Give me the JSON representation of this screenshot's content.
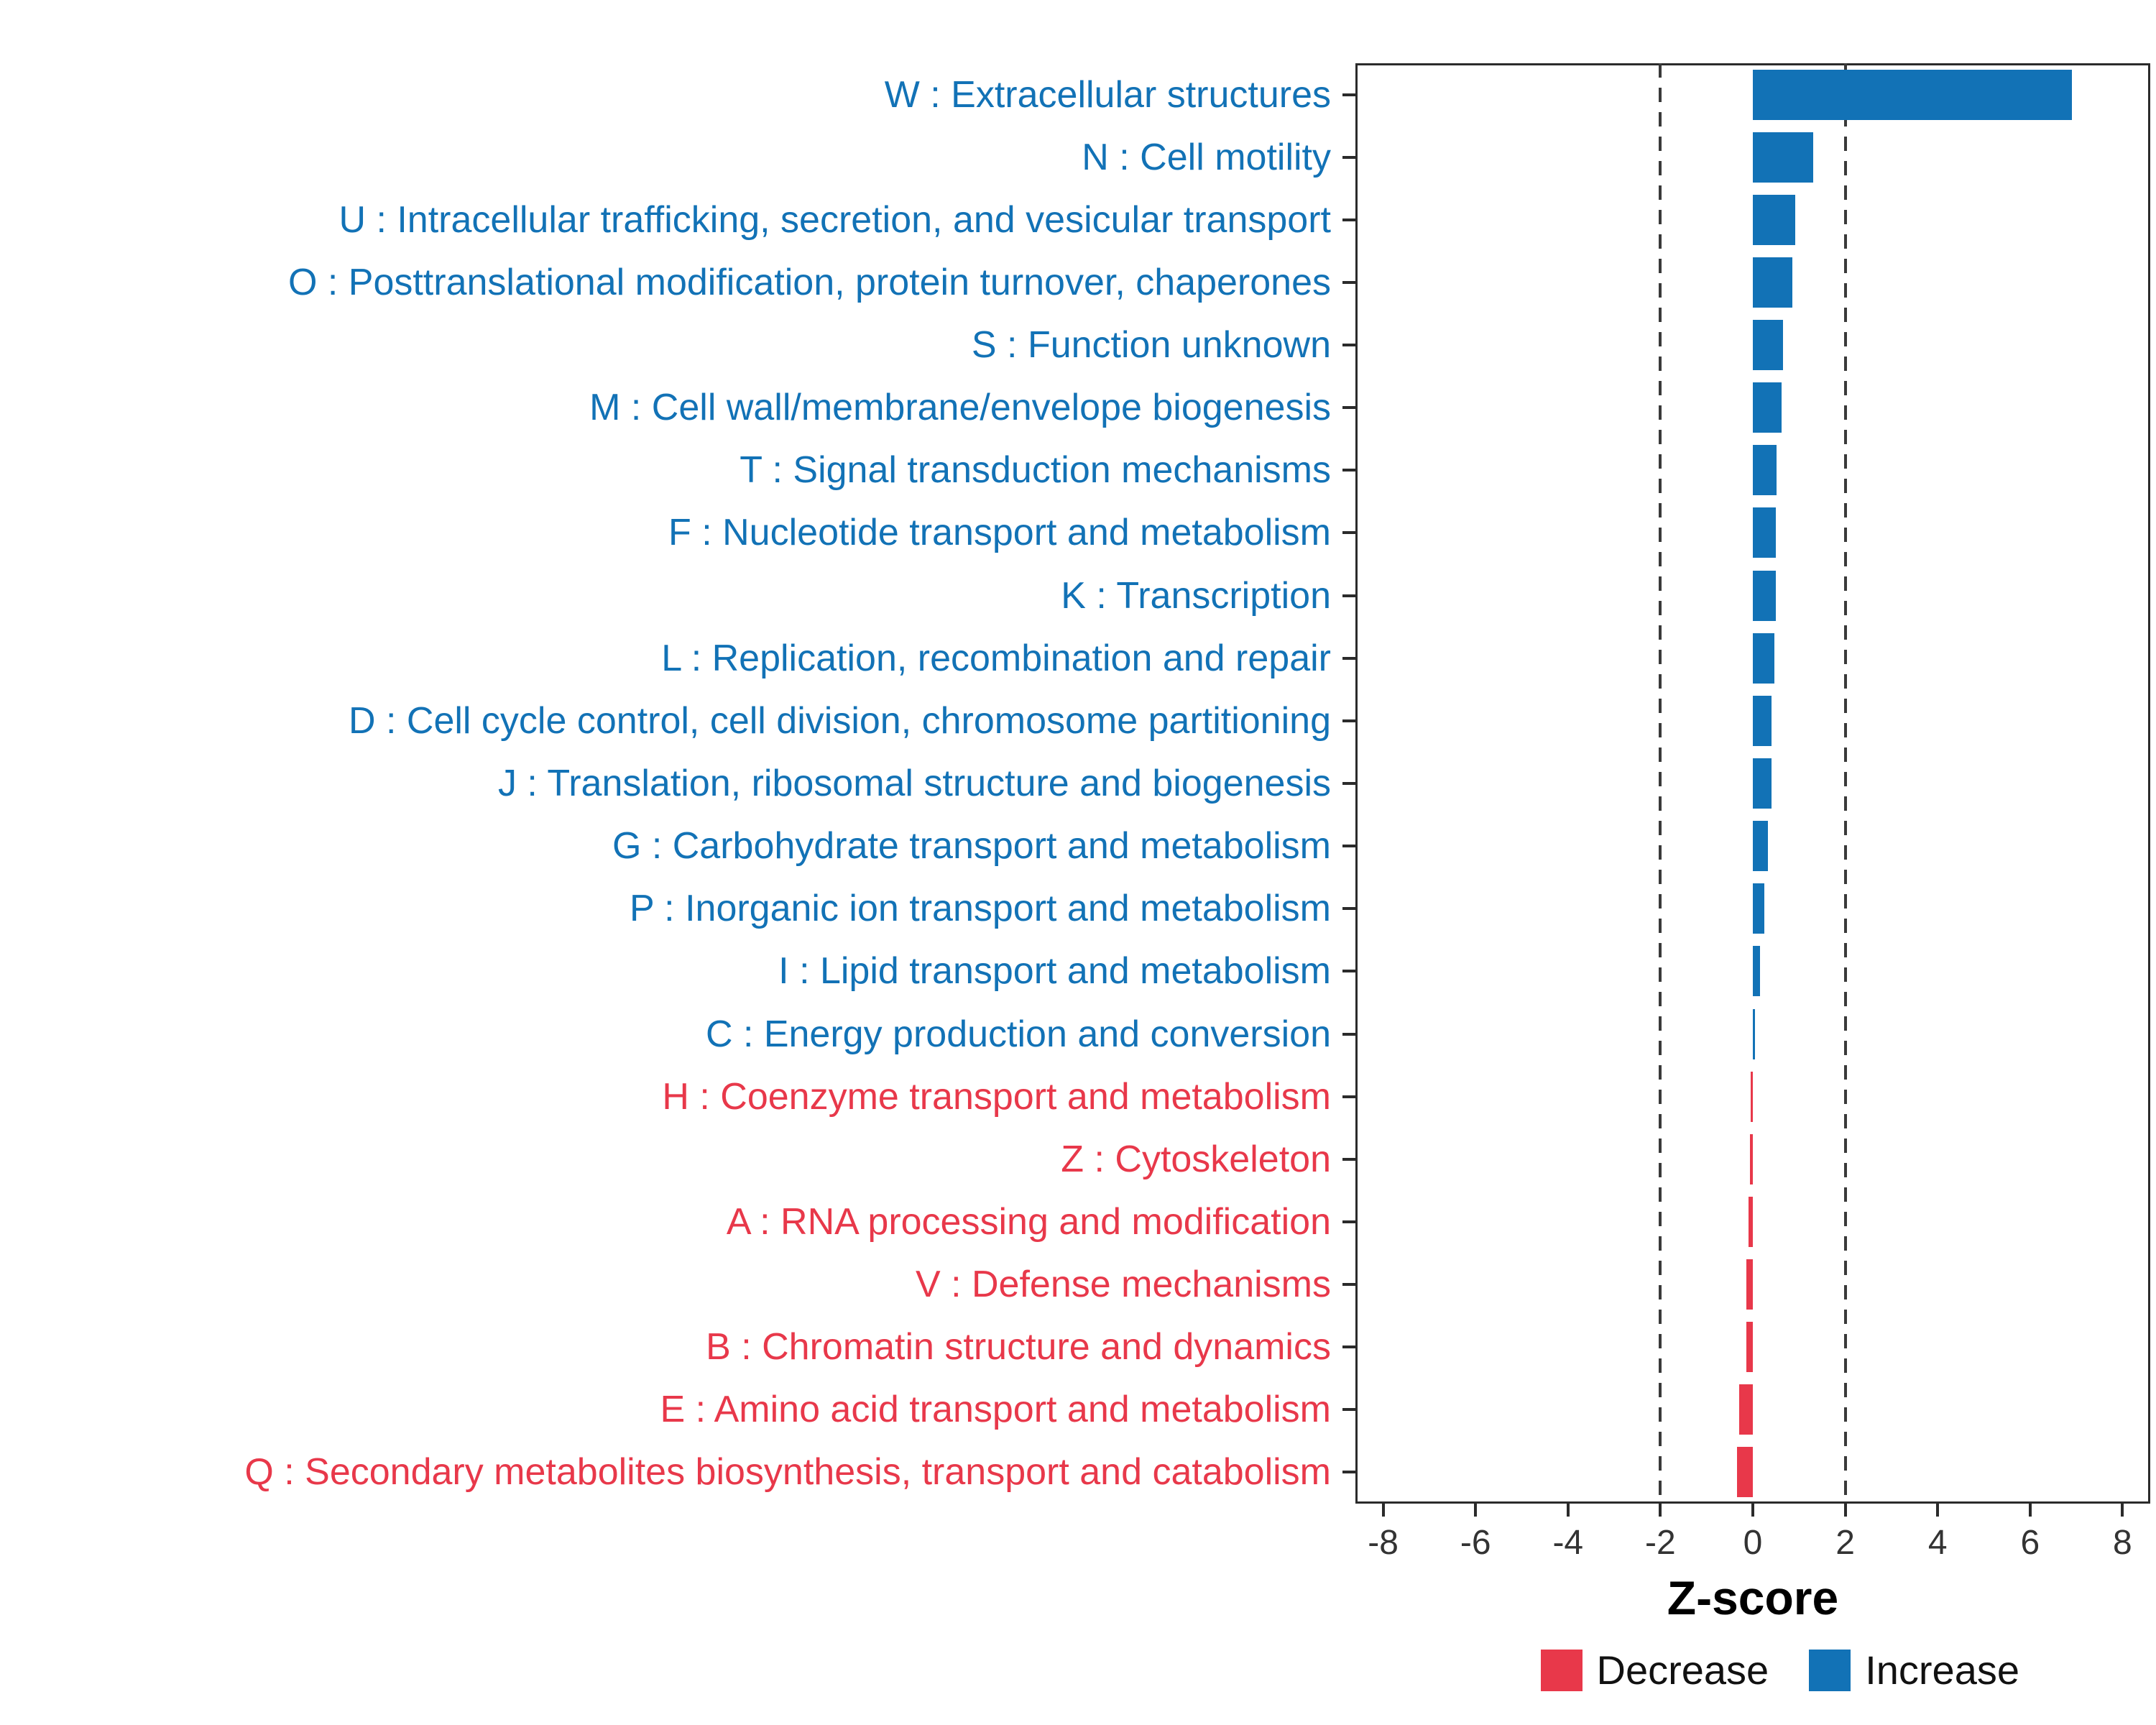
{
  "chart_data": {
    "type": "bar",
    "orientation": "horizontal",
    "title": "",
    "xlabel": "Z-score",
    "xlim": [
      -8.6,
      8.6
    ],
    "x_ticks": [
      -8,
      -6,
      -4,
      -2,
      0,
      2,
      4,
      6,
      8
    ],
    "reference_lines": [
      -2,
      2
    ],
    "grid": "off",
    "legend_position": "bottom-right",
    "colors": {
      "increase": "#1272B6",
      "decrease": "#E8384A"
    },
    "legend": [
      {
        "label": "Decrease",
        "color": "#E8384A"
      },
      {
        "label": "Increase",
        "color": "#1272B6"
      }
    ],
    "categories": [
      {
        "label": "W : Extracellular structures",
        "value": 6.9,
        "direction": "Increase"
      },
      {
        "label": "N : Cell motility",
        "value": 1.3,
        "direction": "Increase"
      },
      {
        "label": "U : Intracellular trafficking, secretion, and vesicular transport",
        "value": 0.92,
        "direction": "Increase"
      },
      {
        "label": "O : Posttranslational modification, protein turnover, chaperones",
        "value": 0.85,
        "direction": "Increase"
      },
      {
        "label": "S : Function unknown",
        "value": 0.65,
        "direction": "Increase"
      },
      {
        "label": "M : Cell wall/membrane/envelope biogenesis",
        "value": 0.62,
        "direction": "Increase"
      },
      {
        "label": "T : Signal transduction mechanisms",
        "value": 0.52,
        "direction": "Increase"
      },
      {
        "label": "F : Nucleotide transport and metabolism",
        "value": 0.5,
        "direction": "Increase"
      },
      {
        "label": "K : Transcription",
        "value": 0.5,
        "direction": "Increase"
      },
      {
        "label": "L : Replication, recombination and repair",
        "value": 0.46,
        "direction": "Increase"
      },
      {
        "label": "D : Cell cycle control, cell division, chromosome partitioning",
        "value": 0.4,
        "direction": "Increase"
      },
      {
        "label": "J : Translation, ribosomal structure and biogenesis",
        "value": 0.4,
        "direction": "Increase"
      },
      {
        "label": "G : Carbohydrate transport and metabolism",
        "value": 0.32,
        "direction": "Increase"
      },
      {
        "label": "P : Inorganic ion transport and metabolism",
        "value": 0.25,
        "direction": "Increase"
      },
      {
        "label": "I : Lipid transport and metabolism",
        "value": 0.16,
        "direction": "Increase"
      },
      {
        "label": "C : Energy production and conversion",
        "value": 0.04,
        "direction": "Increase"
      },
      {
        "label": "H : Coenzyme transport and metabolism",
        "value": -0.05,
        "direction": "Decrease"
      },
      {
        "label": "Z : Cytoskeleton",
        "value": -0.06,
        "direction": "Decrease"
      },
      {
        "label": "A : RNA processing and modification",
        "value": -0.1,
        "direction": "Decrease"
      },
      {
        "label": "V : Defense mechanisms",
        "value": -0.14,
        "direction": "Decrease"
      },
      {
        "label": "B : Chromatin structure and dynamics",
        "value": -0.14,
        "direction": "Decrease"
      },
      {
        "label": "E : Amino acid transport and metabolism",
        "value": -0.3,
        "direction": "Decrease"
      },
      {
        "label": "Q : Secondary metabolites biosynthesis, transport and catabolism",
        "value": -0.34,
        "direction": "Decrease"
      }
    ]
  }
}
